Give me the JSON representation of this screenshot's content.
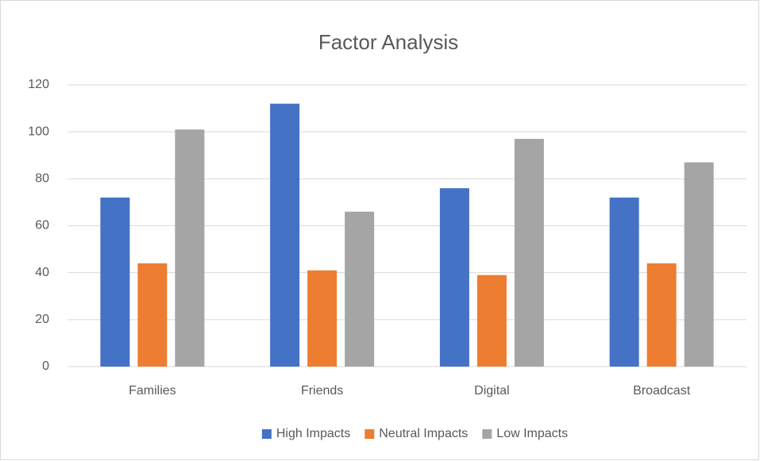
{
  "chart_data": {
    "type": "bar",
    "title": "Factor Analysis",
    "categories": [
      "Families",
      "Friends",
      "Digital",
      "Broadcast"
    ],
    "series": [
      {
        "name": "High Impacts",
        "color": "#4472c4",
        "values": [
          72,
          112,
          76,
          72
        ]
      },
      {
        "name": "Neutral Impacts",
        "color": "#ed7d31",
        "values": [
          44,
          41,
          39,
          44
        ]
      },
      {
        "name": "Low Impacts",
        "color": "#a5a5a5",
        "values": [
          101,
          66,
          97,
          87
        ]
      }
    ],
    "ylim": [
      0,
      120
    ],
    "yticks": [
      0,
      20,
      40,
      60,
      80,
      100,
      120
    ],
    "grid": true,
    "legend": "bottom"
  }
}
